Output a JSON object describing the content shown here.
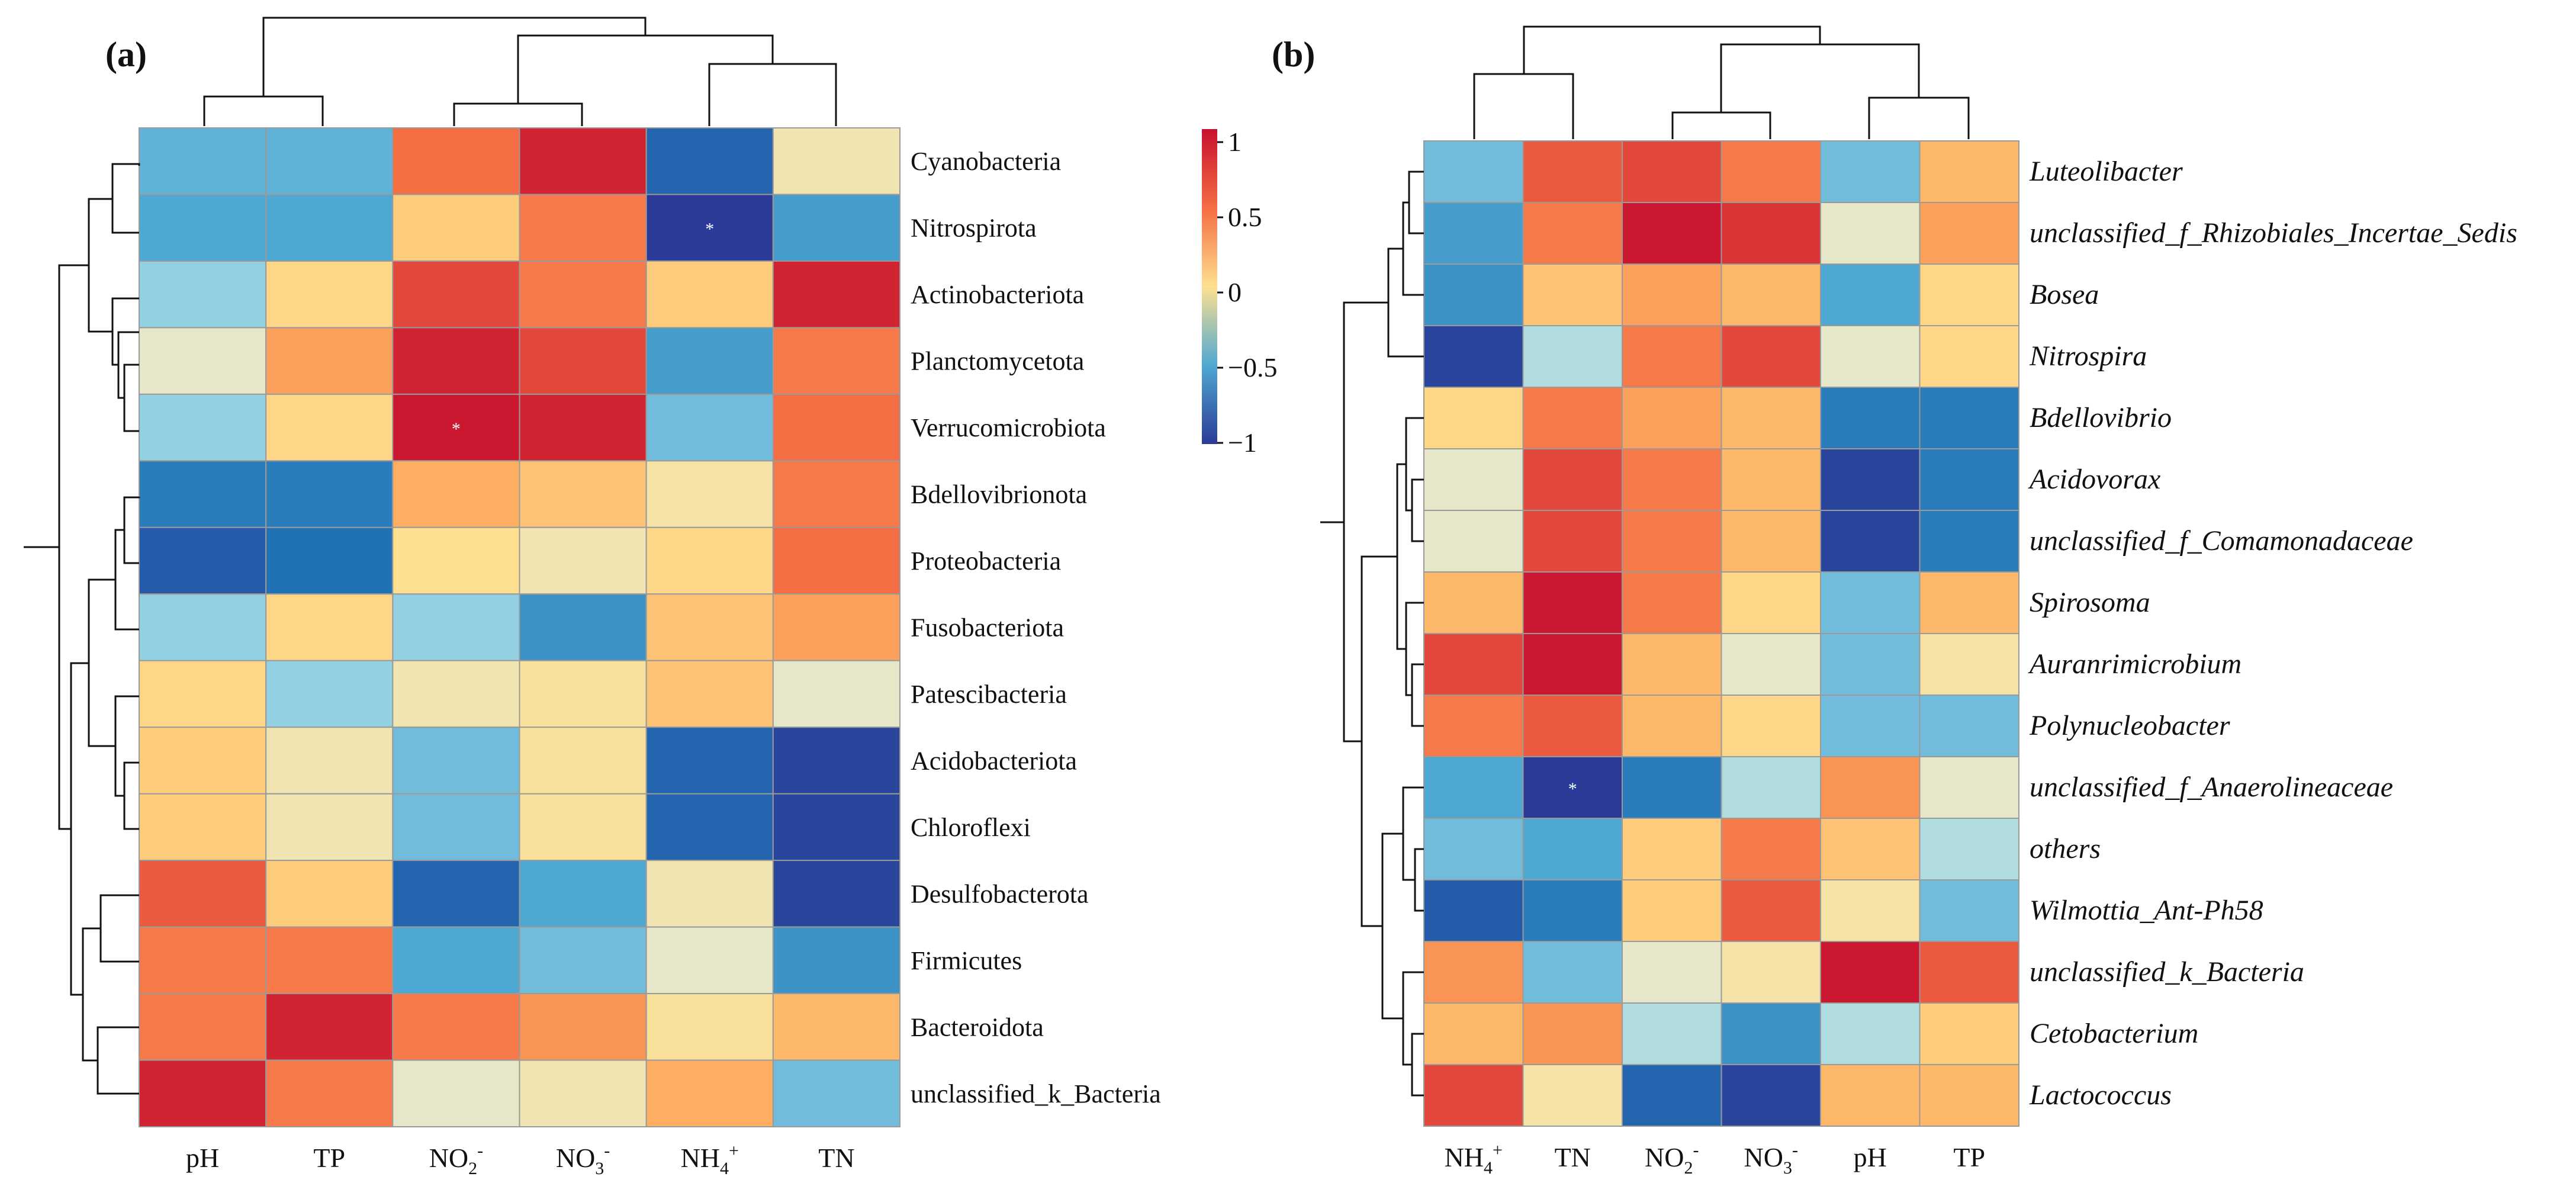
{
  "chart_data": [
    {
      "type": "heatmap",
      "panel": "(a)",
      "columns": [
        "pH",
        "TP",
        "NO2-",
        "NO3-",
        "NH4+",
        "TN"
      ],
      "rows": [
        "Cyanobacteria",
        "Nitrospirota",
        "Actinobacteriota",
        "Planctomycetota",
        "Verrucomicrobiota",
        "Bdellovibrionota",
        "Proteobacteria",
        "Fusobacteriota",
        "Patescibacteria",
        "Acidobacteriota",
        "Chloroflexi",
        "Desulfobacterota",
        "Firmicutes",
        "Bacteroidota",
        "unclassified_k_Bacteria"
      ],
      "values": [
        [
          -0.45,
          -0.45,
          0.75,
          0.95,
          -0.8,
          0.1
        ],
        [
          -0.5,
          -0.5,
          0.35,
          0.7,
          -1.0,
          -0.55
        ],
        [
          -0.3,
          0.3,
          0.85,
          0.7,
          0.35,
          0.95
        ],
        [
          0.0,
          0.55,
          0.95,
          0.85,
          -0.55,
          0.7
        ],
        [
          -0.3,
          0.3,
          0.98,
          0.95,
          -0.4,
          0.75
        ],
        [
          -0.7,
          -0.7,
          0.5,
          0.4,
          0.15,
          0.7
        ],
        [
          -0.85,
          -0.75,
          0.25,
          0.1,
          0.3,
          0.75
        ],
        [
          -0.3,
          0.3,
          -0.3,
          -0.6,
          0.4,
          0.55
        ],
        [
          0.3,
          -0.3,
          0.1,
          0.2,
          0.4,
          0.0
        ],
        [
          0.35,
          0.1,
          -0.4,
          0.2,
          -0.8,
          -0.95
        ],
        [
          0.35,
          0.1,
          -0.4,
          0.2,
          -0.8,
          -0.95
        ],
        [
          0.8,
          0.35,
          -0.8,
          -0.5,
          0.1,
          -0.95
        ],
        [
          0.7,
          0.7,
          -0.5,
          -0.4,
          0.0,
          -0.6
        ],
        [
          0.7,
          0.95,
          0.7,
          0.6,
          0.2,
          0.45
        ],
        [
          0.95,
          0.7,
          0.0,
          0.1,
          0.5,
          -0.4
        ]
      ],
      "significance": [
        {
          "row": "Nitrospirota",
          "column": "NH4+",
          "mark": "*"
        },
        {
          "row": "Verrucomicrobiota",
          "column": "NO2-",
          "mark": "*"
        }
      ],
      "colorbar": {
        "min": -1,
        "max": 1,
        "ticks": [
          "1",
          "0.5",
          "0",
          "−0.5",
          "−1"
        ]
      }
    },
    {
      "type": "heatmap",
      "panel": "(b)",
      "columns": [
        "NH4+",
        "TN",
        "NO2-",
        "NO3-",
        "pH",
        "TP"
      ],
      "rows": [
        "Luteolibacter",
        "unclassified_f_Rhizobiales_Incertae_Sedis",
        "Bosea",
        "Nitrospira",
        "Bdellovibrio",
        "Acidovorax",
        "unclassified_f_Comamonadaceae",
        "Spirosoma",
        "Auranrimicrobium",
        "Polynucleobacter",
        "unclassified_f_Anaerolineaceae",
        "others",
        "Wilmottia_Ant-Ph58",
        "unclassified_k_Bacteria",
        "Cetobacterium",
        "Lactococcus"
      ],
      "values": [
        [
          -0.4,
          0.8,
          0.85,
          0.7,
          -0.4,
          0.45
        ],
        [
          -0.55,
          0.7,
          0.98,
          0.9,
          0.0,
          0.55
        ],
        [
          -0.6,
          0.4,
          0.55,
          0.45,
          -0.5,
          0.3
        ],
        [
          -0.95,
          -0.2,
          0.7,
          0.85,
          0.0,
          0.3
        ],
        [
          0.3,
          0.7,
          0.55,
          0.45,
          -0.7,
          -0.7
        ],
        [
          0.0,
          0.85,
          0.7,
          0.45,
          -0.95,
          -0.7
        ],
        [
          0.0,
          0.85,
          0.7,
          0.45,
          -0.95,
          -0.7
        ],
        [
          0.45,
          0.98,
          0.7,
          0.3,
          -0.4,
          0.45
        ],
        [
          0.85,
          0.98,
          0.45,
          0.0,
          -0.4,
          0.15
        ],
        [
          0.7,
          0.8,
          0.45,
          0.3,
          -0.4,
          -0.4
        ],
        [
          -0.5,
          -1.0,
          -0.7,
          -0.2,
          0.6,
          0.0
        ],
        [
          -0.4,
          -0.5,
          0.35,
          0.7,
          0.4,
          -0.2
        ],
        [
          -0.85,
          -0.7,
          0.35,
          0.8,
          0.15,
          -0.4
        ],
        [
          0.6,
          -0.4,
          0.0,
          0.15,
          0.98,
          0.8
        ],
        [
          0.45,
          0.6,
          -0.2,
          -0.6,
          -0.2,
          0.35
        ],
        [
          0.85,
          0.15,
          -0.8,
          -0.95,
          0.45,
          0.45
        ]
      ],
      "significance": [
        {
          "row": "unclassified_f_Anaerolineaceae",
          "column": "TN",
          "mark": "*"
        }
      ]
    }
  ]
}
